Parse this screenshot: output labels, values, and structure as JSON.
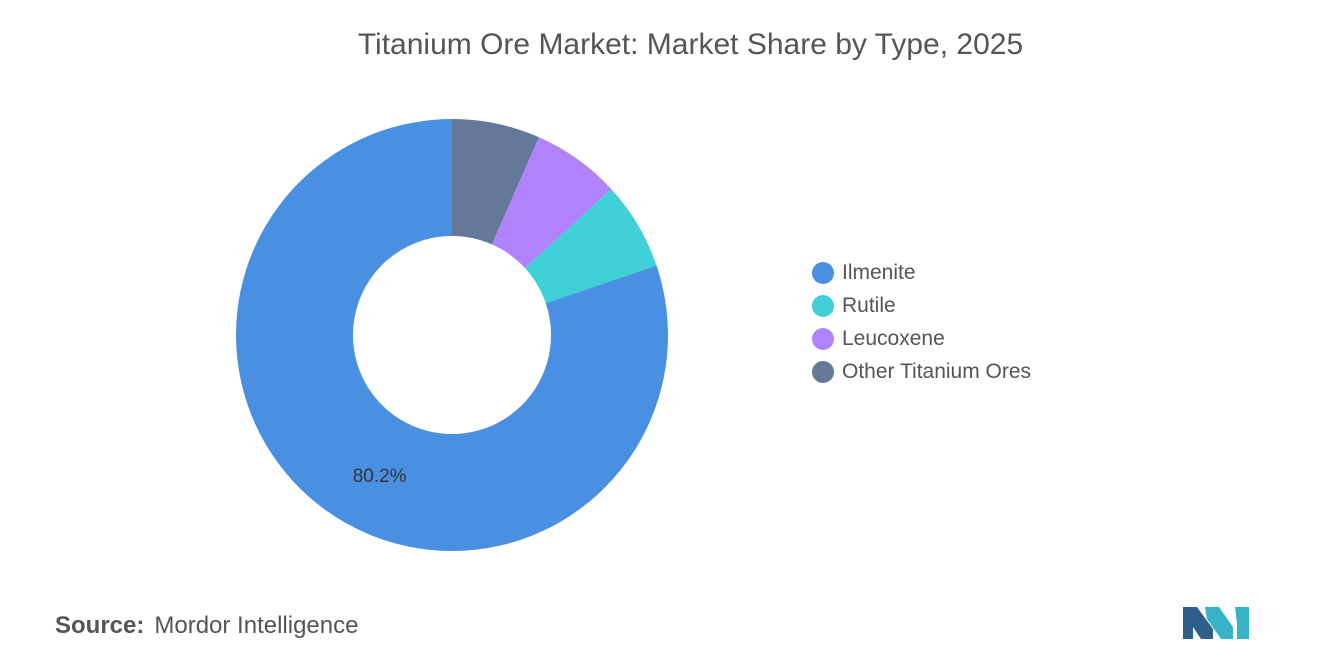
{
  "chart_data": {
    "type": "pie",
    "title": "Titanium Ore Market: Market Share by Type, 2025",
    "categories": [
      "Ilmenite",
      "Rutile",
      "Leucoxene",
      "Other Titanium Ores"
    ],
    "values": [
      80.2,
      6.6,
      6.6,
      6.6
    ],
    "colors": [
      "#4a90e2",
      "#3fd0d8",
      "#b083fc",
      "#64789a"
    ],
    "data_labels": [
      {
        "category": "Ilmenite",
        "text": "80.2%"
      }
    ],
    "legend_position": "right"
  },
  "source": {
    "label": "Source:",
    "text": "Mordor Intelligence"
  },
  "logo": {
    "icon": "mordor-intelligence-logo-icon",
    "colors": [
      "#2e5f8a",
      "#38b2c7"
    ]
  }
}
